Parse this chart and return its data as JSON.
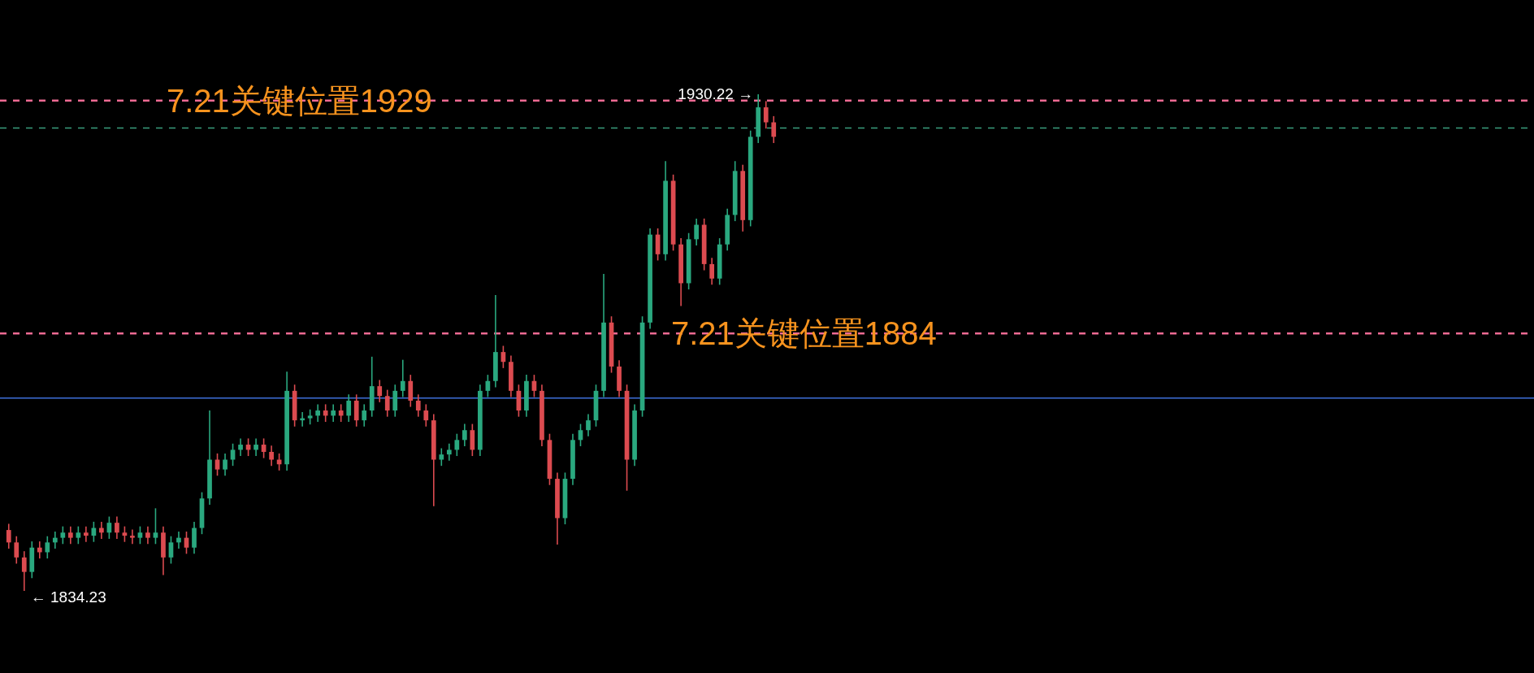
{
  "chart_data": {
    "type": "candlestick",
    "categories": [
      null,
      null,
      null,
      null,
      null,
      null,
      null,
      null,
      null,
      null,
      null,
      null,
      null,
      null,
      null,
      null,
      null,
      null,
      null,
      null,
      null,
      null,
      null,
      null,
      null,
      null,
      null,
      null,
      null,
      null,
      null,
      null,
      null,
      null,
      null,
      null,
      null,
      null,
      null,
      null,
      null,
      null,
      null,
      null,
      null,
      null,
      null,
      null,
      null,
      null,
      null,
      null,
      null,
      null,
      null,
      null,
      null,
      null,
      null,
      null,
      null,
      null,
      null,
      null,
      null,
      null,
      null,
      null,
      null,
      null,
      null,
      null,
      null,
      null,
      null,
      null,
      null,
      null,
      null,
      null,
      null,
      null,
      null,
      null,
      null,
      null,
      null,
      null,
      null,
      null,
      null,
      null,
      null,
      null,
      null,
      null,
      null,
      null,
      null,
      null
    ],
    "colors": [
      "#dc4b50",
      "#dc4b50",
      "#dc4b50",
      "#2aa87f",
      "#dc4b50",
      "#2aa87f",
      "#2aa87f",
      "#2aa87f",
      "#dc4b50",
      "#2aa87f",
      "#dc4b50",
      "#2aa87f",
      "#dc4b50",
      "#2aa87f",
      "#dc4b50",
      "#dc4b50",
      "#dc4b50",
      "#2aa87f",
      "#dc4b50",
      "#2aa87f",
      "#dc4b50",
      "#2aa87f",
      "#2aa87f",
      "#dc4b50",
      "#2aa87f",
      "#2aa87f",
      "#2aa87f",
      "#dc4b50",
      "#2aa87f",
      "#2aa87f",
      "#2aa87f",
      "#dc4b50",
      "#2aa87f",
      "#dc4b50",
      "#dc4b50",
      "#dc4b50",
      "#2aa87f",
      "#dc4b50",
      "#2aa87f",
      "#2aa87f",
      "#2aa87f",
      "#dc4b50",
      "#2aa87f",
      "#dc4b50",
      "#2aa87f",
      "#dc4b50",
      "#2aa87f",
      "#2aa87f",
      "#dc4b50",
      "#dc4b50",
      "#2aa87f",
      "#2aa87f",
      "#dc4b50",
      "#dc4b50",
      "#dc4b50",
      "#dc4b50",
      "#2aa87f",
      "#2aa87f",
      "#2aa87f",
      "#2aa87f",
      "#dc4b50",
      "#2aa87f",
      "#2aa87f",
      "#2aa87f",
      "#dc4b50",
      "#dc4b50",
      "#dc4b50",
      "#2aa87f",
      "#dc4b50",
      "#dc4b50",
      "#dc4b50",
      "#dc4b50",
      "#2aa87f",
      "#2aa87f",
      "#2aa87f",
      "#2aa87f",
      "#2aa87f",
      "#2aa87f",
      "#dc4b50",
      "#dc4b50",
      "#dc4b50",
      "#2aa87f",
      "#2aa87f",
      "#2aa87f",
      "#dc4b50",
      "#2aa87f",
      "#dc4b50",
      "#dc4b50",
      "#2aa87f",
      "#2aa87f",
      "#dc4b50",
      "#dc4b50",
      "#2aa87f",
      "#2aa87f",
      "#2aa87f",
      "#dc4b50",
      "#2aa87f",
      "#2aa87f",
      "#dc4b50",
      "#dc4b50"
    ],
    "ohlc": [
      [
        1846.0,
        1847.2,
        1842.4,
        1843.6
      ],
      [
        1843.6,
        1844.8,
        1839.5,
        1840.7
      ],
      [
        1840.7,
        1841.9,
        1834.23,
        1837.9
      ],
      [
        1837.9,
        1843.8,
        1836.7,
        1842.6
      ],
      [
        1842.6,
        1843.8,
        1840.5,
        1841.7
      ],
      [
        1841.7,
        1844.8,
        1840.5,
        1843.6
      ],
      [
        1843.6,
        1845.7,
        1842.4,
        1844.5
      ],
      [
        1844.5,
        1846.7,
        1843.3,
        1845.5
      ],
      [
        1845.5,
        1846.7,
        1843.3,
        1844.5
      ],
      [
        1844.5,
        1846.7,
        1843.3,
        1845.5
      ],
      [
        1845.5,
        1846.7,
        1843.7,
        1844.9
      ],
      [
        1844.9,
        1847.6,
        1843.7,
        1846.4
      ],
      [
        1846.4,
        1847.6,
        1844.3,
        1845.5
      ],
      [
        1845.5,
        1848.6,
        1844.3,
        1847.4
      ],
      [
        1847.4,
        1848.6,
        1844.3,
        1845.5
      ],
      [
        1845.5,
        1846.7,
        1843.7,
        1844.9
      ],
      [
        1844.9,
        1846.1,
        1843.3,
        1844.5
      ],
      [
        1844.5,
        1846.7,
        1843.3,
        1845.5
      ],
      [
        1845.5,
        1846.7,
        1843.3,
        1844.5
      ],
      [
        1844.5,
        1850.2,
        1843.3,
        1845.5
      ],
      [
        1845.5,
        1846.7,
        1837.3,
        1840.7
      ],
      [
        1840.7,
        1844.8,
        1839.5,
        1843.6
      ],
      [
        1843.6,
        1845.7,
        1842.4,
        1844.5
      ],
      [
        1844.5,
        1845.7,
        1841.4,
        1842.6
      ],
      [
        1842.6,
        1847.6,
        1841.4,
        1846.4
      ],
      [
        1846.4,
        1853.3,
        1845.2,
        1852.1
      ],
      [
        1852.1,
        1869.1,
        1850.9,
        1859.6
      ],
      [
        1859.6,
        1860.8,
        1856.5,
        1857.7
      ],
      [
        1857.7,
        1860.8,
        1856.5,
        1859.6
      ],
      [
        1859.6,
        1862.7,
        1858.4,
        1861.5
      ],
      [
        1861.5,
        1863.7,
        1860.3,
        1862.5
      ],
      [
        1862.5,
        1863.7,
        1860.3,
        1861.5
      ],
      [
        1861.5,
        1863.7,
        1860.3,
        1862.5
      ],
      [
        1862.5,
        1863.7,
        1859.9,
        1861.1
      ],
      [
        1861.1,
        1862.3,
        1858.4,
        1859.6
      ],
      [
        1859.6,
        1860.8,
        1857.5,
        1858.7
      ],
      [
        1858.7,
        1876.6,
        1857.5,
        1872.9
      ],
      [
        1872.9,
        1874.1,
        1866.0,
        1867.2
      ],
      [
        1867.2,
        1868.8,
        1866.0,
        1867.6
      ],
      [
        1867.6,
        1869.3,
        1866.4,
        1868.1
      ],
      [
        1868.1,
        1870.3,
        1866.9,
        1869.1
      ],
      [
        1869.1,
        1870.3,
        1866.9,
        1868.1
      ],
      [
        1868.1,
        1870.3,
        1866.9,
        1869.1
      ],
      [
        1869.1,
        1870.3,
        1866.9,
        1868.1
      ],
      [
        1868.1,
        1872.2,
        1866.9,
        1871.0
      ],
      [
        1871.0,
        1872.2,
        1866.0,
        1867.2
      ],
      [
        1867.2,
        1870.3,
        1866.0,
        1869.1
      ],
      [
        1869.1,
        1879.5,
        1867.9,
        1873.8
      ],
      [
        1873.8,
        1875.0,
        1870.7,
        1871.9
      ],
      [
        1871.9,
        1873.1,
        1867.9,
        1869.1
      ],
      [
        1869.1,
        1874.1,
        1867.9,
        1872.9
      ],
      [
        1872.9,
        1878.9,
        1871.7,
        1874.8
      ],
      [
        1874.8,
        1876.0,
        1869.8,
        1871.0
      ],
      [
        1871.0,
        1872.2,
        1867.9,
        1869.1
      ],
      [
        1869.1,
        1870.3,
        1866.0,
        1867.2
      ],
      [
        1867.2,
        1868.4,
        1850.6,
        1859.6
      ],
      [
        1859.6,
        1861.8,
        1858.4,
        1860.6
      ],
      [
        1860.6,
        1862.7,
        1859.4,
        1861.5
      ],
      [
        1861.5,
        1864.6,
        1860.3,
        1863.4
      ],
      [
        1863.4,
        1866.5,
        1862.2,
        1865.3
      ],
      [
        1865.3,
        1866.5,
        1860.3,
        1861.5
      ],
      [
        1861.5,
        1874.1,
        1860.3,
        1872.9
      ],
      [
        1872.9,
        1876.0,
        1871.7,
        1874.8
      ],
      [
        1874.8,
        1891.4,
        1873.6,
        1880.4
      ],
      [
        1880.4,
        1881.6,
        1877.3,
        1878.5
      ],
      [
        1878.5,
        1879.7,
        1871.7,
        1872.9
      ],
      [
        1872.9,
        1874.1,
        1867.9,
        1869.1
      ],
      [
        1869.1,
        1876.0,
        1867.9,
        1874.8
      ],
      [
        1874.8,
        1876.0,
        1871.7,
        1872.9
      ],
      [
        1872.9,
        1874.1,
        1862.2,
        1863.4
      ],
      [
        1863.4,
        1864.6,
        1854.7,
        1855.9
      ],
      [
        1855.9,
        1857.1,
        1843.2,
        1848.3
      ],
      [
        1848.3,
        1857.1,
        1847.1,
        1855.9
      ],
      [
        1855.9,
        1864.6,
        1854.7,
        1863.4
      ],
      [
        1863.4,
        1866.5,
        1862.2,
        1865.3
      ],
      [
        1865.3,
        1868.4,
        1864.1,
        1867.2
      ],
      [
        1867.2,
        1874.1,
        1866.0,
        1872.9
      ],
      [
        1872.9,
        1895.5,
        1871.7,
        1886.1
      ],
      [
        1886.1,
        1887.3,
        1876.4,
        1877.6
      ],
      [
        1877.6,
        1878.8,
        1871.7,
        1872.9
      ],
      [
        1872.9,
        1874.1,
        1853.6,
        1859.6
      ],
      [
        1859.6,
        1870.3,
        1858.4,
        1869.1
      ],
      [
        1869.1,
        1887.3,
        1867.9,
        1886.1
      ],
      [
        1886.1,
        1904.3,
        1884.9,
        1903.1
      ],
      [
        1903.1,
        1904.3,
        1898.1,
        1899.3
      ],
      [
        1899.3,
        1917.3,
        1898.1,
        1913.5
      ],
      [
        1913.5,
        1914.7,
        1900.0,
        1901.2
      ],
      [
        1901.2,
        1902.4,
        1889.3,
        1893.7
      ],
      [
        1893.7,
        1903.4,
        1892.5,
        1902.2
      ],
      [
        1902.2,
        1906.2,
        1901.0,
        1905.0
      ],
      [
        1905.0,
        1906.2,
        1896.2,
        1897.4
      ],
      [
        1897.4,
        1898.6,
        1893.4,
        1894.6
      ],
      [
        1894.6,
        1902.4,
        1893.4,
        1901.2
      ],
      [
        1901.2,
        1908.1,
        1900.0,
        1906.9
      ],
      [
        1906.9,
        1917.3,
        1905.7,
        1915.4
      ],
      [
        1915.4,
        1916.6,
        1903.7,
        1905.9
      ],
      [
        1905.9,
        1923.2,
        1904.7,
        1922.0
      ],
      [
        1922.0,
        1930.22,
        1920.8,
        1927.7
      ],
      [
        1927.7,
        1928.9,
        1923.6,
        1924.8
      ],
      [
        1924.8,
        1926.0,
        1920.8,
        1922.0
      ]
    ],
    "ref_lines": [
      {
        "axis": "y",
        "value": 1929,
        "label": "7.21关键位置1929",
        "color": "#ee6a93",
        "line_style": "dashed"
      },
      {
        "axis": "y",
        "value": 1884,
        "label": "7.21关键位置1884",
        "color": "#ee6a93",
        "line_style": "dashed"
      },
      {
        "axis": "y",
        "value": 1923.7,
        "color": "#3a9e7e",
        "line_style": "dashed"
      },
      {
        "axis": "y",
        "value": 1871.5,
        "color": "#3d6fd9",
        "line_style": "solid"
      }
    ],
    "annotations": [
      "1930.22 →",
      "← 1834.23"
    ]
  }
}
